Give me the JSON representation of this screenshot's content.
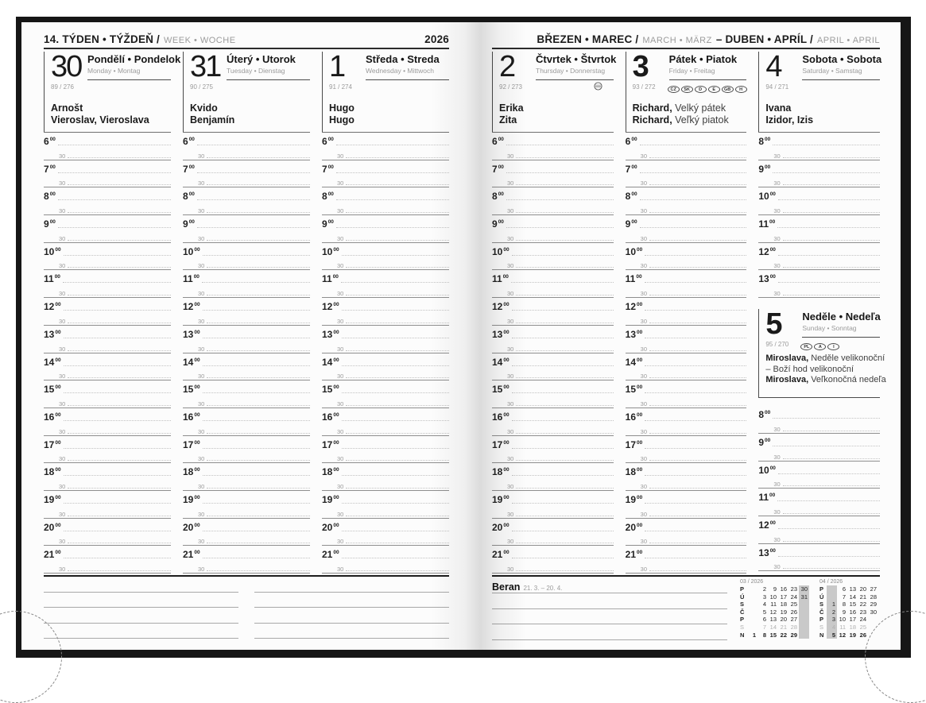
{
  "page_left": {
    "week_label_bold": "14. TÝDEN • TÝŽDEŇ /",
    "week_label_gray": "WEEK • WOCHE",
    "year": "2026"
  },
  "page_right": {
    "month_bold_1": "BŘEZEN • MAREC /",
    "month_gray_1": "MARCH • MÄRZ",
    "month_bold_2": "– DUBEN • APRÍL /",
    "month_gray_2": "APRIL • APRIL"
  },
  "time_labels": {
    "weekday_hours": [
      "6",
      "7",
      "8",
      "9",
      "10",
      "11",
      "12",
      "13",
      "14",
      "15",
      "16",
      "17",
      "18",
      "19",
      "20",
      "21"
    ],
    "weekend_hours": [
      "8",
      "9",
      "10",
      "11",
      "12",
      "13"
    ],
    "hour_sup": "00",
    "half_hour": "30"
  },
  "days_left": [
    {
      "num": "30",
      "holiday": false,
      "name_cs_sk": "Pondělí • Pondelok",
      "name_en_de": "Monday • Montag",
      "day_of_year": "89 / 276",
      "entries": [
        {
          "b": "Arnošt",
          "r": ""
        },
        {
          "b": "Vieroslav, Vieroslava",
          "r": ""
        }
      ],
      "hours": "weekday_hours"
    },
    {
      "num": "31",
      "holiday": false,
      "name_cs_sk": "Úterý • Utorok",
      "name_en_de": "Tuesday • Dienstag",
      "day_of_year": "90 / 275",
      "entries": [
        {
          "b": "Kvido",
          "r": ""
        },
        {
          "b": "Benjamín",
          "r": ""
        }
      ],
      "hours": "weekday_hours"
    },
    {
      "num": "1",
      "holiday": false,
      "name_cs_sk": "Středa • Streda",
      "name_en_de": "Wednesday • Mittwoch",
      "day_of_year": "91 / 274",
      "entries": [
        {
          "b": "Hugo",
          "r": ""
        },
        {
          "b": "Hugo",
          "r": ""
        }
      ],
      "hours": "weekday_hours"
    }
  ],
  "days_right": [
    {
      "num": "2",
      "holiday": false,
      "name_cs_sk": "Čtvrtek • Štvrtok",
      "name_en_de": "Thursday • Donnerstag",
      "day_of_year": "92 / 273",
      "moon_icon": true,
      "entries": [
        {
          "b": "Erika",
          "r": ""
        },
        {
          "b": "Zita",
          "r": ""
        }
      ],
      "hours": "weekday_hours"
    },
    {
      "num": "3",
      "holiday": true,
      "name_cs_sk": "Pátek • Piatok",
      "name_en_de": "Friday • Freitag",
      "day_of_year": "93 / 272",
      "badges": [
        "CZ",
        "SK",
        "D",
        "E",
        "GB",
        "H"
      ],
      "entries": [
        {
          "b": "Richard,",
          "r": " Velký pátek"
        },
        {
          "b": "Richard,",
          "r": " Veľký piatok"
        }
      ],
      "hours": "weekday_hours"
    },
    {
      "num": "4",
      "holiday": false,
      "name_cs_sk": "Sobota • Sobota",
      "name_en_de": "Saturday • Samstag",
      "day_of_year": "94 / 271",
      "entries": [
        {
          "b": "Ivana",
          "r": ""
        },
        {
          "b": "Izidor, Izis",
          "r": ""
        }
      ],
      "hours": "weekend_hours"
    }
  ],
  "sunday": {
    "num": "5",
    "holiday": true,
    "name_cs_sk": "Neděle • Nedeľa",
    "name_en_de": "Sunday • Sonntag",
    "day_of_year": "95 / 270",
    "badges": [
      "PL",
      "A",
      "I"
    ],
    "entries": [
      {
        "b": "Miroslava,",
        "r": " Neděle velikonoční"
      },
      {
        "b": "",
        "r": "– Boží hod velikonoční"
      },
      {
        "b": "Miroslava,",
        "r": " Veľkonočná nedeľa"
      }
    ],
    "hours": "weekend_hours"
  },
  "zodiac": {
    "name": "Beran",
    "range": "21. 3. – 20. 4."
  },
  "mini_calendars": [
    {
      "title": "03 / 2026",
      "row_labels": [
        "P",
        "Ú",
        "S",
        "Č",
        "P",
        "S",
        "N"
      ],
      "highlight_col": 5,
      "rows": [
        [
          "",
          "2",
          "9",
          "16",
          "23",
          "30"
        ],
        [
          "",
          "3",
          "10",
          "17",
          "24",
          "31"
        ],
        [
          "",
          "4",
          "11",
          "18",
          "25",
          ""
        ],
        [
          "",
          "5",
          "12",
          "19",
          "26",
          ""
        ],
        [
          "",
          "6",
          "13",
          "20",
          "27",
          ""
        ],
        [
          "",
          "7",
          "14",
          "21",
          "28",
          ""
        ],
        [
          "1",
          "8",
          "15",
          "22",
          "29",
          ""
        ]
      ]
    },
    {
      "title": "04 / 2026",
      "row_labels": [
        "P",
        "Ú",
        "S",
        "Č",
        "P",
        "S",
        "N"
      ],
      "highlight_col": 0,
      "rows": [
        [
          "",
          "6",
          "13",
          "20",
          "27"
        ],
        [
          "",
          "7",
          "14",
          "21",
          "28"
        ],
        [
          "1",
          "8",
          "15",
          "22",
          "29"
        ],
        [
          "2",
          "9",
          "16",
          "23",
          "30"
        ],
        [
          "3",
          "10",
          "17",
          "24",
          ""
        ],
        [
          "4",
          "11",
          "18",
          "25",
          ""
        ],
        [
          "5",
          "12",
          "19",
          "26",
          ""
        ]
      ]
    }
  ]
}
